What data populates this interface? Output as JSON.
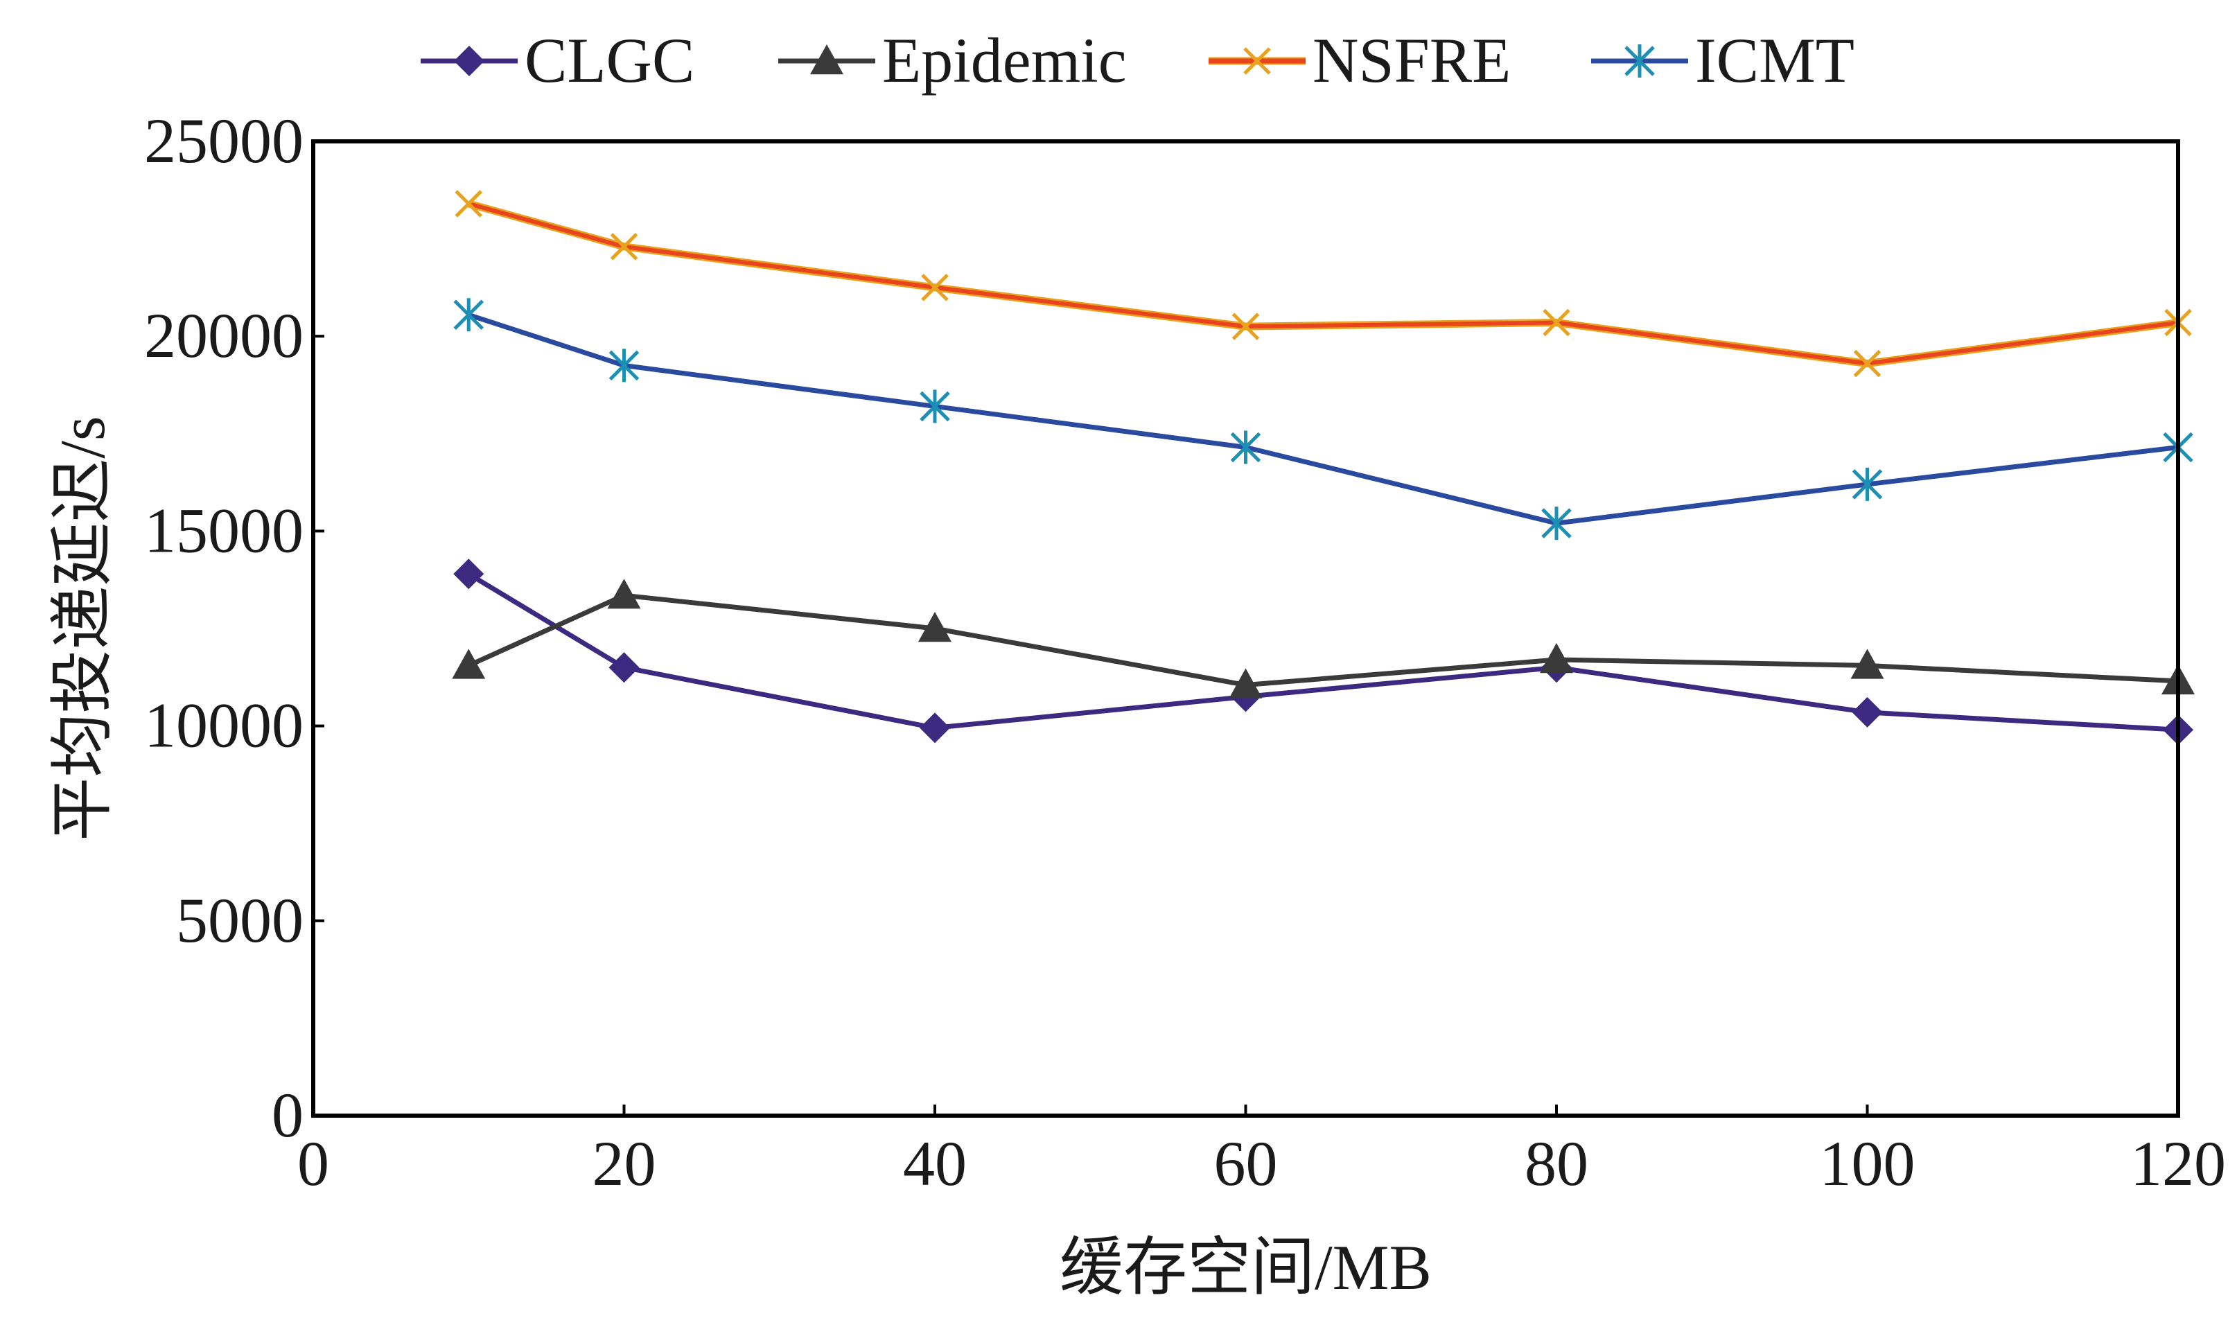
{
  "chart_data": {
    "type": "line",
    "title": "",
    "xlabel": "缓存空间/MB",
    "ylabel": "平均投递延迟/s",
    "xlim": [
      0,
      120
    ],
    "ylim": [
      0,
      25000
    ],
    "xticks": [
      0,
      20,
      40,
      60,
      80,
      100,
      120
    ],
    "yticks": [
      0,
      5000,
      10000,
      15000,
      20000,
      25000
    ],
    "x_tick_labels": [
      "0",
      "20",
      "40",
      "60",
      "80",
      "100",
      "120"
    ],
    "y_tick_labels": [
      "0",
      "5000",
      "10000",
      "15000",
      "20000",
      "25000"
    ],
    "grid": false,
    "legend_position": "top",
    "x": [
      10,
      20,
      40,
      60,
      80,
      100,
      120
    ],
    "series": [
      {
        "name": "CLGC",
        "marker": "diamond",
        "color": "#3b2a80",
        "values": [
          13900,
          11500,
          9950,
          10750,
          11500,
          10350,
          9900
        ]
      },
      {
        "name": "Epidemic",
        "marker": "triangle",
        "color": "#3a3a3a",
        "values": [
          11550,
          13350,
          12500,
          11050,
          11700,
          11550,
          11150
        ]
      },
      {
        "name": "NSFRE",
        "marker": "x",
        "color": "#e8451e",
        "values": [
          23400,
          22300,
          21250,
          20250,
          20350,
          19300,
          20350
        ]
      },
      {
        "name": "ICMT",
        "marker": "asterisk",
        "color": "#2a4aa0",
        "values": [
          20550,
          19250,
          18200,
          17150,
          15200,
          16200,
          17150
        ]
      }
    ]
  }
}
